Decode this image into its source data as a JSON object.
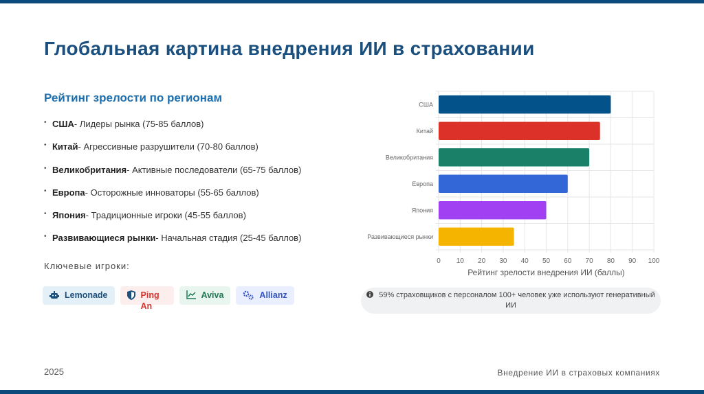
{
  "title": "Глобальная картина внедрения ИИ в страховании",
  "subtitle": "Рейтинг зрелости по регионам",
  "bullets": [
    {
      "name": "США",
      "text": "- Лидеры рынка (75-85 баллов)"
    },
    {
      "name": "Китай",
      "text": "- Агрессивные разрушители (70-80 баллов)"
    },
    {
      "name": "Великобритания",
      "text": "- Активные последователи (65-75 баллов)"
    },
    {
      "name": "Европа",
      "text": "- Осторожные инноваторы (55-65 баллов)"
    },
    {
      "name": "Япония",
      "text": "- Традиционные игроки (45-55 баллов)"
    },
    {
      "name": "Развивающиеся рынки",
      "text": "- Начальная стадия (25-45 баллов)"
    }
  ],
  "key_players_label": "Ключевые игроки:",
  "players": [
    {
      "label": "Lemonade",
      "icon": "robot-icon"
    },
    {
      "label": "Ping An",
      "icon": "shield-icon"
    },
    {
      "label": "Aviva",
      "icon": "chart-line-icon"
    },
    {
      "label": "Allianz",
      "icon": "cogs-icon"
    }
  ],
  "chart_data": {
    "type": "bar",
    "orientation": "horizontal",
    "categories": [
      "США",
      "Китай",
      "Великобритания",
      "Европа",
      "Япония",
      "Развивающиеся рынки"
    ],
    "values": [
      80,
      75,
      70,
      60,
      50,
      35
    ],
    "colors": [
      "#03538a",
      "#dc3128",
      "#1b8068",
      "#3366d6",
      "#a040f2",
      "#f5b400"
    ],
    "xlabel": "Рейтинг зрелости внедрения ИИ (баллы)",
    "xlim": [
      0,
      100
    ],
    "xticks": [
      0,
      10,
      20,
      30,
      40,
      50,
      60,
      70,
      80,
      90,
      100
    ],
    "grid": true
  },
  "note": {
    "icon": "info-icon",
    "text": "59% страховщиков с персоналом 100+ человек уже используют генеративный ИИ"
  },
  "footer": {
    "year": "2025",
    "caption": "Внедрение ИИ в страховых компаниях"
  }
}
